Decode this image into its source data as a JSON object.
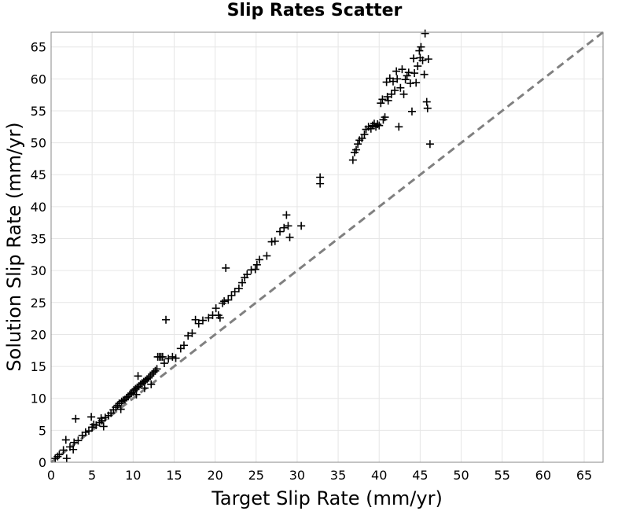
{
  "chart_data": {
    "type": "scatter",
    "title": "Slip Rates Scatter",
    "xlabel": "Target Slip Rate (mm/yr)",
    "ylabel": "Solution Slip Rate (mm/yr)",
    "xlim": [
      0,
      67.3
    ],
    "ylim": [
      0,
      67.3
    ],
    "xticks": [
      "0",
      "5",
      "10",
      "15",
      "20",
      "25",
      "30",
      "35",
      "40",
      "45",
      "50",
      "55",
      "60",
      "65"
    ],
    "yticks": [
      "0",
      "5",
      "10",
      "15",
      "20",
      "25",
      "30",
      "35",
      "40",
      "45",
      "50",
      "55",
      "60",
      "65"
    ],
    "grid": true,
    "marker": "plus",
    "marker_color": "#000000",
    "reference_line": {
      "style": "dashed",
      "color": "#808080",
      "from": [
        0,
        0
      ],
      "to": [
        67.3,
        67.3
      ]
    },
    "series": [
      {
        "points": [
          [
            0.5,
            0.6
          ],
          [
            0.8,
            0.9
          ],
          [
            1.0,
            1.2
          ],
          [
            1.5,
            1.9
          ],
          [
            1.8,
            3.5
          ],
          [
            1.9,
            0.6
          ],
          [
            2.3,
            2.4
          ],
          [
            2.7,
            2.0
          ],
          [
            2.8,
            3.1
          ],
          [
            3.0,
            6.8
          ],
          [
            3.3,
            3.4
          ],
          [
            3.8,
            4.2
          ],
          [
            4.2,
            4.7
          ],
          [
            4.6,
            4.9
          ],
          [
            4.9,
            7.1
          ],
          [
            5.0,
            5.5
          ],
          [
            5.2,
            5.9
          ],
          [
            5.5,
            5.8
          ],
          [
            5.9,
            6.2
          ],
          [
            6.1,
            6.9
          ],
          [
            6.2,
            6.5
          ],
          [
            6.4,
            5.6
          ],
          [
            6.6,
            7.0
          ],
          [
            7.0,
            7.3
          ],
          [
            7.3,
            7.7
          ],
          [
            7.6,
            8.2
          ],
          [
            7.9,
            8.6
          ],
          [
            8.1,
            8.9
          ],
          [
            8.3,
            9.2
          ],
          [
            8.5,
            8.3
          ],
          [
            8.6,
            9.5
          ],
          [
            8.8,
            9.7
          ],
          [
            9.0,
            9.8
          ],
          [
            9.2,
            10.1
          ],
          [
            9.4,
            10.3
          ],
          [
            9.6,
            10.6
          ],
          [
            9.8,
            10.8
          ],
          [
            10.0,
            11.0
          ],
          [
            10.1,
            11.3
          ],
          [
            10.3,
            11.5
          ],
          [
            10.4,
            10.6
          ],
          [
            10.5,
            11.7
          ],
          [
            10.6,
            13.5
          ],
          [
            10.7,
            11.9
          ],
          [
            10.9,
            12.2
          ],
          [
            11.1,
            12.4
          ],
          [
            11.3,
            12.6
          ],
          [
            11.4,
            11.6
          ],
          [
            11.5,
            12.8
          ],
          [
            11.7,
            13.0
          ],
          [
            11.9,
            13.2
          ],
          [
            12.1,
            13.5
          ],
          [
            12.2,
            12.2
          ],
          [
            12.3,
            13.8
          ],
          [
            12.5,
            14.1
          ],
          [
            12.7,
            14.3
          ],
          [
            12.9,
            14.6
          ],
          [
            13.0,
            16.5
          ],
          [
            13.2,
            16.5
          ],
          [
            13.4,
            16.5
          ],
          [
            13.6,
            16.5
          ],
          [
            13.8,
            15.5
          ],
          [
            14.0,
            22.3
          ],
          [
            14.3,
            16.2
          ],
          [
            14.8,
            16.5
          ],
          [
            15.2,
            16.3
          ],
          [
            15.8,
            17.8
          ],
          [
            16.2,
            18.3
          ],
          [
            16.7,
            19.8
          ],
          [
            17.2,
            20.2
          ],
          [
            17.6,
            22.3
          ],
          [
            18.0,
            21.7
          ],
          [
            18.5,
            22.2
          ],
          [
            19.2,
            22.6
          ],
          [
            19.7,
            23.0
          ],
          [
            20.1,
            24.1
          ],
          [
            20.4,
            23.0
          ],
          [
            20.6,
            22.6
          ],
          [
            20.9,
            24.9
          ],
          [
            21.1,
            25.2
          ],
          [
            21.3,
            30.4
          ],
          [
            21.6,
            25.4
          ],
          [
            22.0,
            26.1
          ],
          [
            22.4,
            26.7
          ],
          [
            22.9,
            27.2
          ],
          [
            23.3,
            28.1
          ],
          [
            23.6,
            28.9
          ],
          [
            23.9,
            29.4
          ],
          [
            24.4,
            30.1
          ],
          [
            24.9,
            30.2
          ],
          [
            25.1,
            30.9
          ],
          [
            25.4,
            31.7
          ],
          [
            26.3,
            32.3
          ],
          [
            26.9,
            34.5
          ],
          [
            27.3,
            34.6
          ],
          [
            27.9,
            36.1
          ],
          [
            28.4,
            36.7
          ],
          [
            28.7,
            38.7
          ],
          [
            28.9,
            37.0
          ],
          [
            29.1,
            35.2
          ],
          [
            30.5,
            37.0
          ],
          [
            32.8,
            44.6
          ],
          [
            32.8,
            43.6
          ],
          [
            36.8,
            47.3
          ],
          [
            37.0,
            48.5
          ],
          [
            37.2,
            48.9
          ],
          [
            37.4,
            49.8
          ],
          [
            37.6,
            50.4
          ],
          [
            37.9,
            50.7
          ],
          [
            38.2,
            51.3
          ],
          [
            38.4,
            52.1
          ],
          [
            38.7,
            52.5
          ],
          [
            39.0,
            52.2
          ],
          [
            39.2,
            52.7
          ],
          [
            39.4,
            53.0
          ],
          [
            39.6,
            52.5
          ],
          [
            39.8,
            52.9
          ],
          [
            40.0,
            52.7
          ],
          [
            40.2,
            56.2
          ],
          [
            40.4,
            56.8
          ],
          [
            40.5,
            53.6
          ],
          [
            40.7,
            54.0
          ],
          [
            40.9,
            59.5
          ],
          [
            41.0,
            57.2
          ],
          [
            41.1,
            56.6
          ],
          [
            41.3,
            60.1
          ],
          [
            41.5,
            57.6
          ],
          [
            41.7,
            59.6
          ],
          [
            41.9,
            58.2
          ],
          [
            42.1,
            61.2
          ],
          [
            42.2,
            60.0
          ],
          [
            42.4,
            52.5
          ],
          [
            42.6,
            58.6
          ],
          [
            42.8,
            61.5
          ],
          [
            43.0,
            57.6
          ],
          [
            43.2,
            59.9
          ],
          [
            43.4,
            60.5
          ],
          [
            43.6,
            61.0
          ],
          [
            43.8,
            59.3
          ],
          [
            44.0,
            54.9
          ],
          [
            44.2,
            63.2
          ],
          [
            44.3,
            60.9
          ],
          [
            44.5,
            59.4
          ],
          [
            44.7,
            62.0
          ],
          [
            44.9,
            64.4
          ],
          [
            45.0,
            63.3
          ],
          [
            45.1,
            65.0
          ],
          [
            45.3,
            62.9
          ],
          [
            45.5,
            60.7
          ],
          [
            45.6,
            67.1
          ],
          [
            45.8,
            56.4
          ],
          [
            45.9,
            55.4
          ],
          [
            46.0,
            63.1
          ],
          [
            46.2,
            49.8
          ]
        ]
      }
    ]
  }
}
